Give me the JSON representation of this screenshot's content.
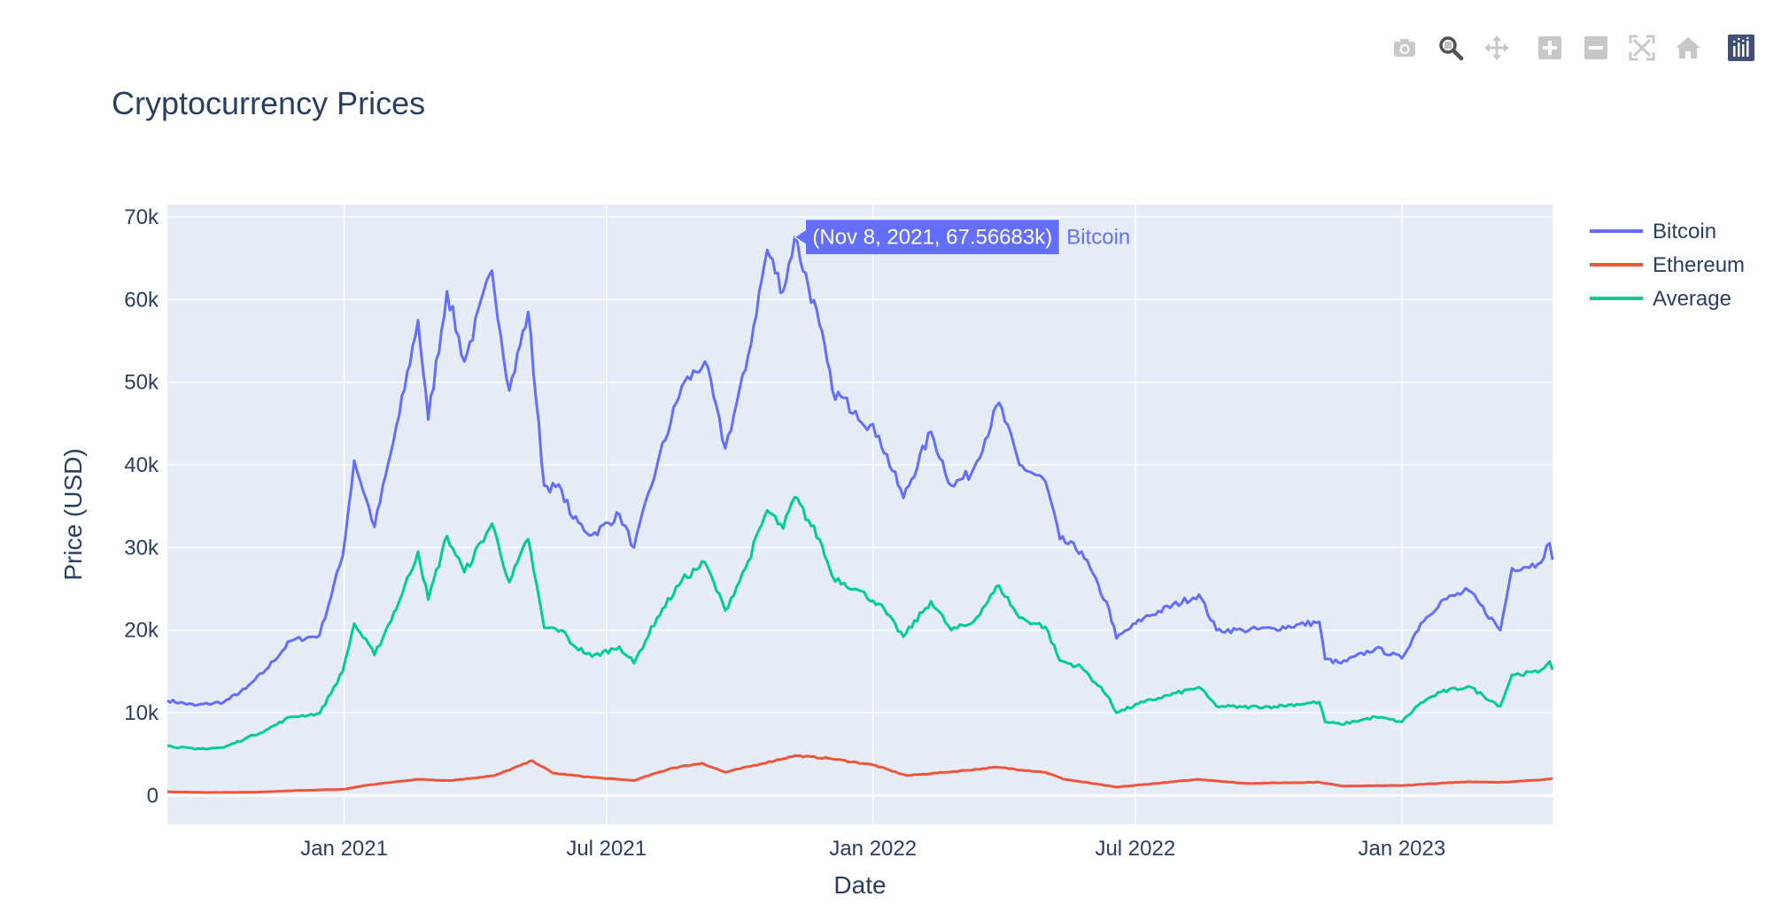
{
  "chart_data": {
    "type": "line",
    "title": "Cryptocurrency Prices",
    "xlabel": "Date",
    "ylabel": "Price (USD)",
    "xlim": [
      "2020-09-01",
      "2023-04-15"
    ],
    "ylim": [
      -3500,
      71500
    ],
    "x_ticks": [
      {
        "date": "2021-01-01",
        "label": "Jan 2021"
      },
      {
        "date": "2021-07-01",
        "label": "Jul 2021"
      },
      {
        "date": "2022-01-01",
        "label": "Jan 2022"
      },
      {
        "date": "2022-07-01",
        "label": "Jul 2022"
      },
      {
        "date": "2023-01-01",
        "label": "Jan 2023"
      }
    ],
    "y_ticks": [
      {
        "value": 0,
        "label": "0"
      },
      {
        "value": 10000,
        "label": "10k"
      },
      {
        "value": 20000,
        "label": "20k"
      },
      {
        "value": 30000,
        "label": "30k"
      },
      {
        "value": 40000,
        "label": "40k"
      },
      {
        "value": 50000,
        "label": "50k"
      },
      {
        "value": 60000,
        "label": "60k"
      },
      {
        "value": 70000,
        "label": "70k"
      }
    ],
    "grid": true,
    "legend_position": "top-right",
    "series": [
      {
        "name": "Bitcoin",
        "color": "#636efa",
        "points": [
          [
            "2020-09-01",
            11500
          ],
          [
            "2020-09-20",
            10900
          ],
          [
            "2020-10-10",
            11300
          ],
          [
            "2020-10-25",
            12900
          ],
          [
            "2020-11-08",
            15200
          ],
          [
            "2020-11-25",
            18700
          ],
          [
            "2020-12-15",
            19400
          ],
          [
            "2020-12-31",
            29000
          ],
          [
            "2021-01-08",
            40500
          ],
          [
            "2021-01-22",
            32500
          ],
          [
            "2021-02-08",
            46000
          ],
          [
            "2021-02-21",
            57500
          ],
          [
            "2021-02-28",
            45500
          ],
          [
            "2021-03-13",
            61000
          ],
          [
            "2021-03-25",
            52500
          ],
          [
            "2021-04-13",
            63500
          ],
          [
            "2021-04-25",
            49000
          ],
          [
            "2021-05-08",
            58500
          ],
          [
            "2021-05-19",
            37500
          ],
          [
            "2021-05-31",
            37000
          ],
          [
            "2021-06-08",
            33500
          ],
          [
            "2021-06-21",
            31500
          ],
          [
            "2021-07-10",
            34000
          ],
          [
            "2021-07-20",
            30000
          ],
          [
            "2021-08-05",
            40000
          ],
          [
            "2021-08-22",
            49500
          ],
          [
            "2021-09-07",
            52500
          ],
          [
            "2021-09-21",
            42000
          ],
          [
            "2021-10-05",
            51500
          ],
          [
            "2021-10-20",
            66000
          ],
          [
            "2021-10-31",
            61000
          ],
          [
            "2021-11-08",
            67566.83
          ],
          [
            "2021-11-25",
            57000
          ],
          [
            "2021-12-04",
            49000
          ],
          [
            "2021-12-20",
            46500
          ],
          [
            "2022-01-05",
            43500
          ],
          [
            "2022-01-22",
            36000
          ],
          [
            "2022-02-10",
            44000
          ],
          [
            "2022-02-24",
            37500
          ],
          [
            "2022-03-10",
            39000
          ],
          [
            "2022-03-29",
            47500
          ],
          [
            "2022-04-12",
            40000
          ],
          [
            "2022-04-30",
            38000
          ],
          [
            "2022-05-10",
            31000
          ],
          [
            "2022-05-25",
            29500
          ],
          [
            "2022-06-13",
            22500
          ],
          [
            "2022-06-18",
            19000
          ],
          [
            "2022-07-07",
            21500
          ],
          [
            "2022-08-14",
            24300
          ],
          [
            "2022-08-26",
            20000
          ],
          [
            "2022-09-13",
            20000
          ],
          [
            "2022-10-05",
            20200
          ],
          [
            "2022-11-05",
            21000
          ],
          [
            "2022-11-09",
            16500
          ],
          [
            "2022-11-20",
            16000
          ],
          [
            "2022-12-14",
            17800
          ],
          [
            "2023-01-01",
            16600
          ],
          [
            "2023-01-14",
            20800
          ],
          [
            "2023-01-28",
            23500
          ],
          [
            "2023-02-16",
            24800
          ],
          [
            "2023-03-10",
            20000
          ],
          [
            "2023-03-18",
            27500
          ],
          [
            "2023-04-05",
            28000
          ],
          [
            "2023-04-13",
            30500
          ],
          [
            "2023-04-15",
            28500
          ]
        ]
      },
      {
        "name": "Ethereum",
        "color": "#ef553b",
        "points": [
          [
            "2020-09-01",
            430
          ],
          [
            "2020-10-01",
            360
          ],
          [
            "2020-11-01",
            390
          ],
          [
            "2020-12-01",
            600
          ],
          [
            "2021-01-01",
            740
          ],
          [
            "2021-01-15",
            1200
          ],
          [
            "2021-02-20",
            1950
          ],
          [
            "2021-03-15",
            1800
          ],
          [
            "2021-04-15",
            2400
          ],
          [
            "2021-05-11",
            4200
          ],
          [
            "2021-05-25",
            2700
          ],
          [
            "2021-06-20",
            2200
          ],
          [
            "2021-07-20",
            1800
          ],
          [
            "2021-08-15",
            3300
          ],
          [
            "2021-09-05",
            3900
          ],
          [
            "2021-09-21",
            2800
          ],
          [
            "2021-10-15",
            3800
          ],
          [
            "2021-11-08",
            4800
          ],
          [
            "2021-12-01",
            4500
          ],
          [
            "2022-01-01",
            3700
          ],
          [
            "2022-01-24",
            2400
          ],
          [
            "2022-02-20",
            2800
          ],
          [
            "2022-03-28",
            3400
          ],
          [
            "2022-04-30",
            2800
          ],
          [
            "2022-05-12",
            2000
          ],
          [
            "2022-06-18",
            1000
          ],
          [
            "2022-08-14",
            1950
          ],
          [
            "2022-09-15",
            1450
          ],
          [
            "2022-11-05",
            1600
          ],
          [
            "2022-11-20",
            1150
          ],
          [
            "2023-01-01",
            1200
          ],
          [
            "2023-02-15",
            1650
          ],
          [
            "2023-03-15",
            1600
          ],
          [
            "2023-04-13",
            2000
          ],
          [
            "2023-04-15",
            2050
          ]
        ]
      },
      {
        "name": "Average",
        "color": "#00cc96",
        "points": [
          [
            "2020-09-01",
            6000
          ],
          [
            "2020-09-20",
            5600
          ],
          [
            "2020-10-10",
            5800
          ],
          [
            "2020-10-25",
            6900
          ],
          [
            "2020-11-08",
            7900
          ],
          [
            "2020-11-25",
            9500
          ],
          [
            "2020-12-15",
            9900
          ],
          [
            "2020-12-31",
            15000
          ],
          [
            "2021-01-08",
            20800
          ],
          [
            "2021-01-22",
            17000
          ],
          [
            "2021-02-08",
            23500
          ],
          [
            "2021-02-21",
            29500
          ],
          [
            "2021-02-28",
            23700
          ],
          [
            "2021-03-13",
            31400
          ],
          [
            "2021-03-25",
            27000
          ],
          [
            "2021-04-13",
            32900
          ],
          [
            "2021-04-25",
            25800
          ],
          [
            "2021-05-08",
            31000
          ],
          [
            "2021-05-19",
            20300
          ],
          [
            "2021-05-31",
            20000
          ],
          [
            "2021-06-08",
            18200
          ],
          [
            "2021-06-21",
            16800
          ],
          [
            "2021-07-10",
            18000
          ],
          [
            "2021-07-20",
            16000
          ],
          [
            "2021-08-05",
            21500
          ],
          [
            "2021-08-22",
            26000
          ],
          [
            "2021-09-07",
            28200
          ],
          [
            "2021-09-21",
            22400
          ],
          [
            "2021-10-05",
            27500
          ],
          [
            "2021-10-20",
            34500
          ],
          [
            "2021-10-31",
            32300
          ],
          [
            "2021-11-08",
            36100
          ],
          [
            "2021-11-25",
            31000
          ],
          [
            "2021-12-04",
            26500
          ],
          [
            "2021-12-20",
            25000
          ],
          [
            "2022-01-05",
            23200
          ],
          [
            "2022-01-22",
            19200
          ],
          [
            "2022-02-10",
            23500
          ],
          [
            "2022-02-24",
            20000
          ],
          [
            "2022-03-10",
            20800
          ],
          [
            "2022-03-29",
            25400
          ],
          [
            "2022-04-12",
            21500
          ],
          [
            "2022-04-30",
            20400
          ],
          [
            "2022-05-10",
            16300
          ],
          [
            "2022-05-25",
            15500
          ],
          [
            "2022-06-13",
            11800
          ],
          [
            "2022-06-18",
            10000
          ],
          [
            "2022-07-07",
            11300
          ],
          [
            "2022-08-14",
            13100
          ],
          [
            "2022-08-26",
            10800
          ],
          [
            "2022-09-13",
            10700
          ],
          [
            "2022-10-05",
            10750
          ],
          [
            "2022-11-05",
            11300
          ],
          [
            "2022-11-09",
            8900
          ],
          [
            "2022-11-20",
            8600
          ],
          [
            "2022-12-14",
            9500
          ],
          [
            "2023-01-01",
            8900
          ],
          [
            "2023-01-14",
            11200
          ],
          [
            "2023-01-28",
            12500
          ],
          [
            "2023-02-16",
            13200
          ],
          [
            "2023-03-10",
            10800
          ],
          [
            "2023-03-18",
            14600
          ],
          [
            "2023-04-05",
            14900
          ],
          [
            "2023-04-13",
            16200
          ],
          [
            "2023-04-15",
            15200
          ]
        ]
      }
    ],
    "hover": {
      "series": "Bitcoin",
      "date": "2021-11-08",
      "value": 67566.83,
      "text": "(Nov 8, 2021, 67.56683k)",
      "label": "Bitcoin"
    }
  },
  "modebar": [
    {
      "name": "camera-icon"
    },
    {
      "name": "zoom-icon"
    },
    {
      "name": "pan-icon"
    },
    {
      "name": "zoom-in-icon"
    },
    {
      "name": "zoom-out-icon"
    },
    {
      "name": "autoscale-icon"
    },
    {
      "name": "reset-axes-icon"
    },
    {
      "name": "plotly-logo-icon"
    }
  ]
}
